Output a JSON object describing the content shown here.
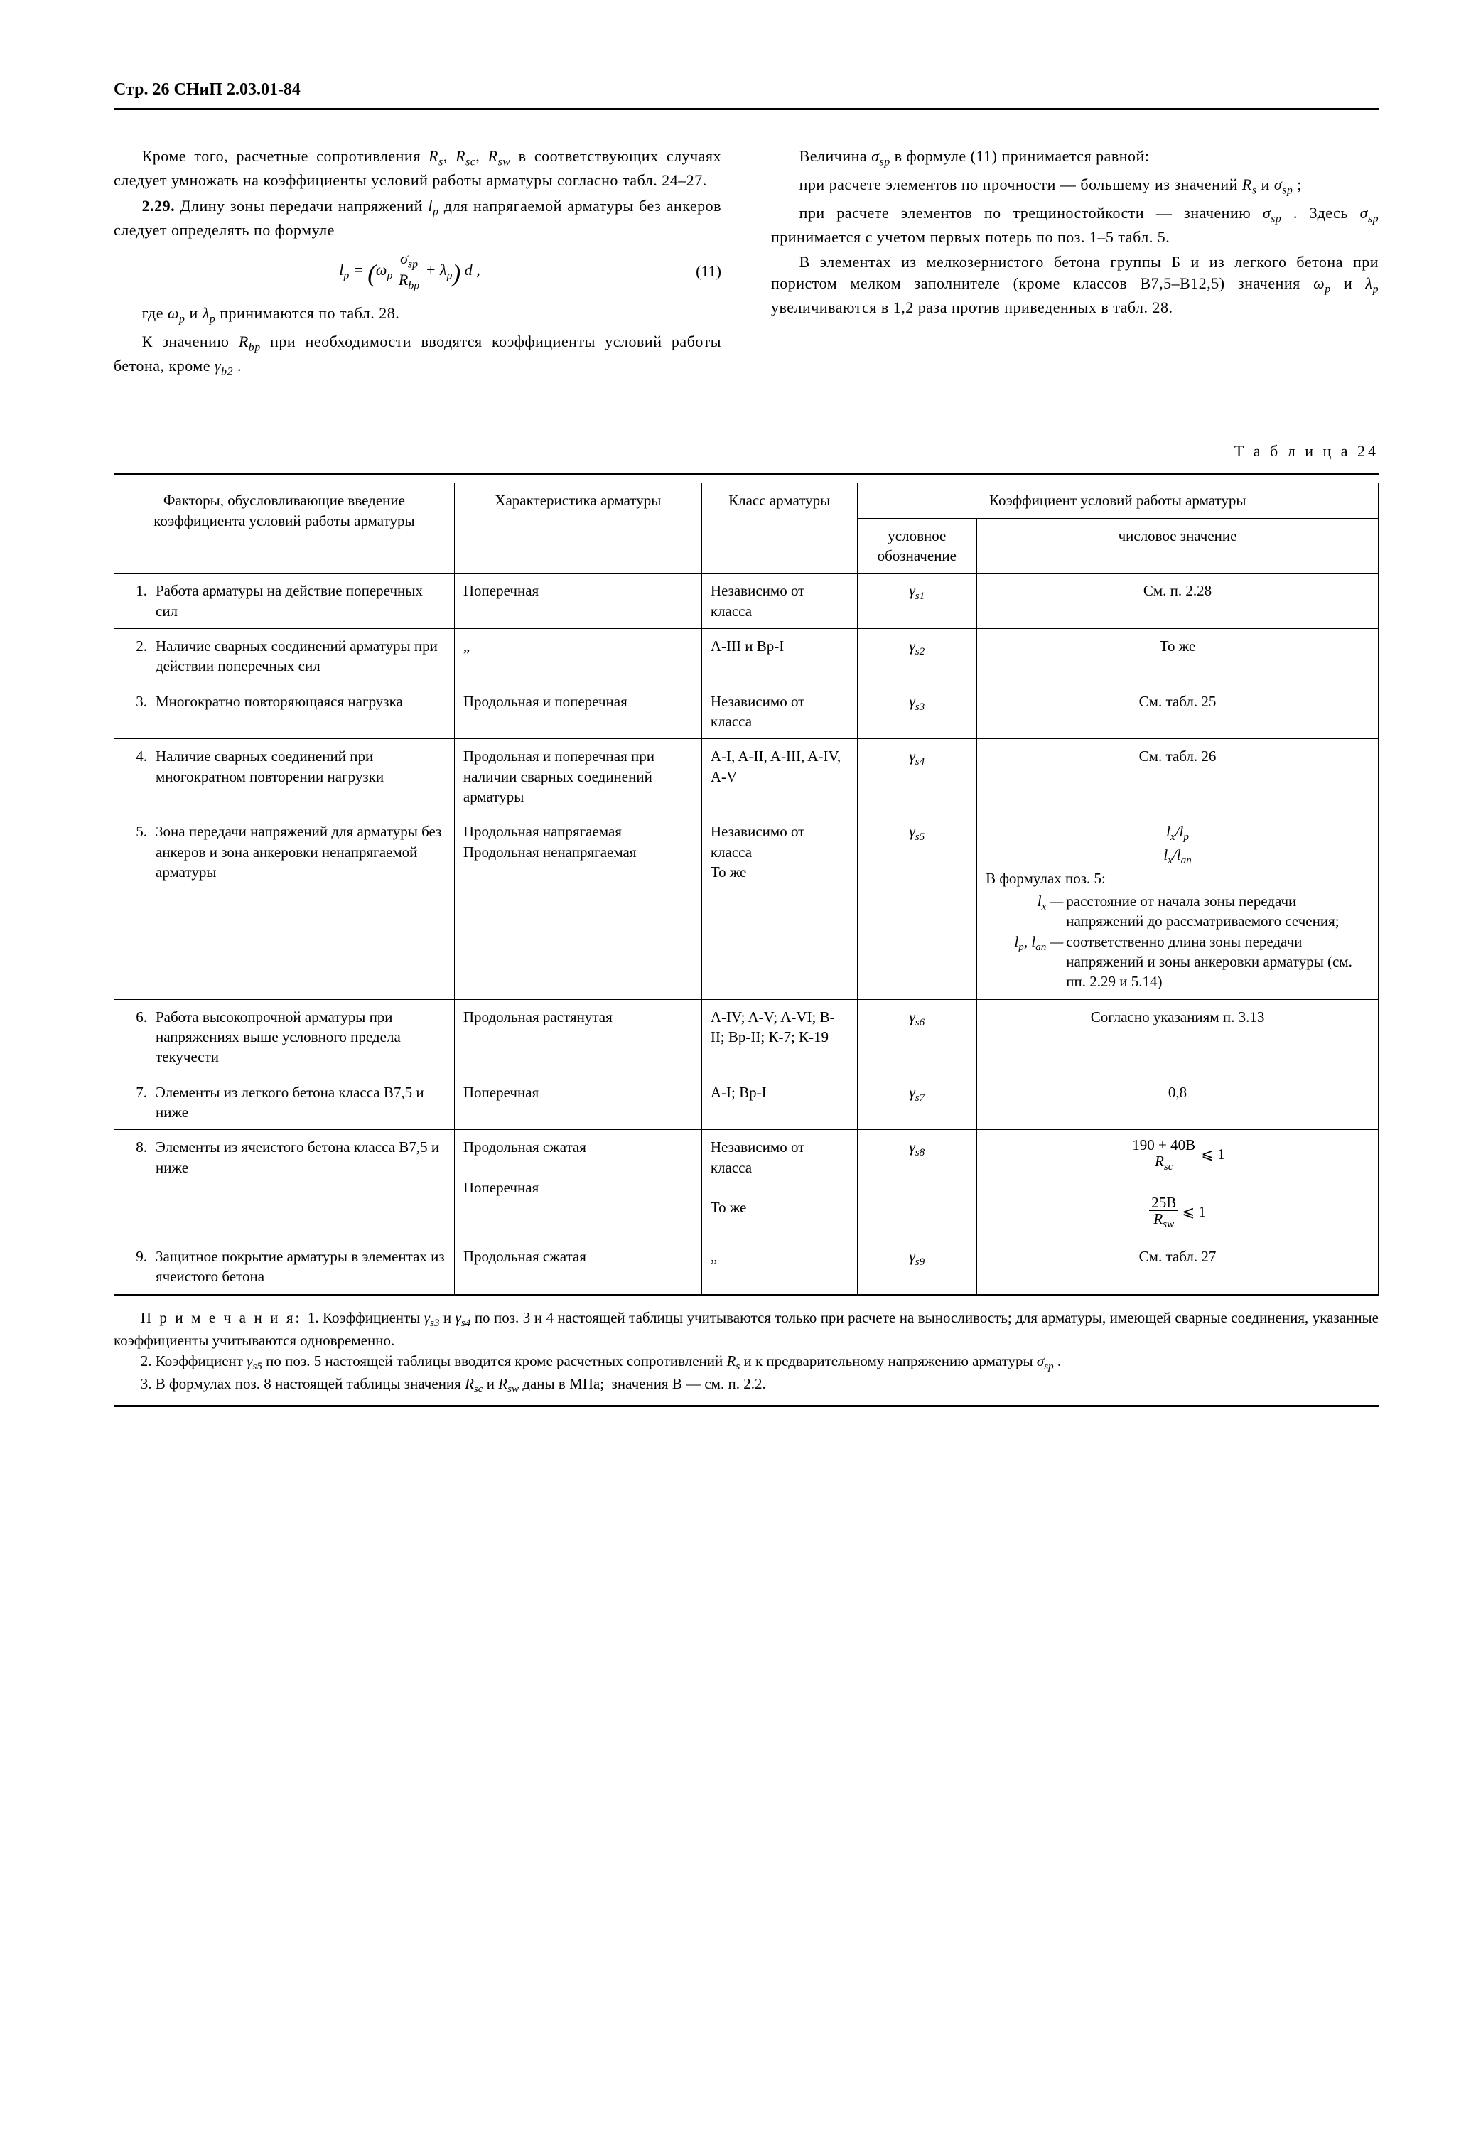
{
  "header": "Стр. 26 СНиП 2.03.01-84",
  "left": {
    "p1": "Кроме того, расчетные сопротивления Rₛ, R_sc, R_sw в соответствующих случаях следует умножать на коэффициенты условий работы арматуры согласно табл. 24–27.",
    "p2a": "2.29.",
    "p2b": " Длину зоны передачи напряжений l_p для напрягаемой арматуры без анкеров следует определять по формуле",
    "formula_num": "(11)",
    "p3": "где ω_p и λ_p принимаются по табл. 28.",
    "p4": "К значению R_bp при необходимости вводятся коэффициенты условий работы бетона, кроме γ_b2 ."
  },
  "right": {
    "p1": "Величина σ_sp в формуле (11) принимается равной:",
    "p2": "при расчете элементов по прочности — большему из значений Rₛ и σ_sp ;",
    "p3": "при расчете элементов по трещиностойкости — значению σ_sp . Здесь σ_sp принимается с учетом первых потерь по поз. 1–5 табл. 5.",
    "p4": "В элементах из мелкозернистого бетона группы Б и из легкого бетона при пористом мелком заполнителе (кроме классов В7,5–В12,5) значения ω_p и λ_p увеличиваются в 1,2 раза против приведенных в табл. 28."
  },
  "table_caption": "Т а б л и ц а  24",
  "thead": {
    "c1": "Факторы, обусловливающие введение коэффициента условий работы арматуры",
    "c2": "Характеристика арматуры",
    "c3": "Класс арматуры",
    "c4": "Коэффициент условий работы арматуры",
    "c4a": "условное обозначение",
    "c4b": "числовое значение"
  },
  "rows": [
    {
      "n": "1.",
      "factor": "Работа арматуры на действие поперечных сил",
      "char": "Поперечная",
      "class": "Независимо от класса",
      "sym": "γ_s1",
      "val": "См. п. 2.28"
    },
    {
      "n": "2.",
      "factor": "Наличие сварных соединений арматуры при действии поперечных сил",
      "char": "„",
      "class": "A-III и Вр-I",
      "sym": "γ_s2",
      "val": "То же"
    },
    {
      "n": "3.",
      "factor": "Многократно повторяющаяся нагрузка",
      "char": "Продольная и поперечная",
      "class": "Независимо от класса",
      "sym": "γ_s3",
      "val": "См. табл. 25"
    },
    {
      "n": "4.",
      "factor": "Наличие сварных соединений при многократном повторении нагрузки",
      "char": "Продольная и поперечная при наличии сварных соединений арматуры",
      "class": "A-I, A-II, A-III, A-IV, A-V",
      "sym": "γ_s4",
      "val": "См. табл. 26"
    },
    {
      "n": "5.",
      "factor": "Зона передачи напряжений для арматуры без анкеров и зона анкеровки ненапрягаемой арматуры",
      "char": "Продольная напрягаемая\nПродольная ненапрягаемая",
      "class": "Независимо от класса\nТо же",
      "sym": "γ_s5",
      "val": ""
    },
    {
      "n": "6.",
      "factor": "Работа высокопрочной арматуры при напряжениях выше условного предела текучести",
      "char": "Продольная растянутая",
      "class": "A-IV; A-V; A-VI; B-II; Вр-II; К-7; К-19",
      "sym": "γ_s6",
      "val": "Согласно указаниям п. 3.13"
    },
    {
      "n": "7.",
      "factor": "Элементы из легкого бетона класса В7,5 и ниже",
      "char": "Поперечная",
      "class": "A-I; Вр-I",
      "sym": "γ_s7",
      "val": "0,8"
    },
    {
      "n": "8.",
      "factor": "Элементы из ячеистого бетона класса В7,5 и ниже",
      "char": "Продольная сжатая\n\nПоперечная",
      "class": "Независимо от класса\n\nТо же",
      "sym": "γ_s8",
      "val": ""
    },
    {
      "n": "9.",
      "factor": "Защитное покрытие арматуры в элементах из ячеистого бетона",
      "char": "Продольная сжатая",
      "class": "„",
      "sym": "γ_s9",
      "val": "См. табл. 27"
    }
  ],
  "row5v": {
    "h1": "l_x / l_p",
    "h2": "l_x / l_an",
    "lead": "В формулах поз. 5:",
    "lx": "l_x —",
    "lx_def": "расстояние от начала зоны передачи напряжений до рассматриваемого сечения;",
    "lp": "l_p , l_an —",
    "lp_def": "соответственно длина зоны передачи напряжений и зоны анкеровки арматуры (см. пп. 2.29 и 5.14)"
  },
  "row8v": {
    "f1_num": "190 + 40В",
    "f1_den": "R_sc",
    "f2_num": "25В",
    "f2_den": "R_sw",
    "le": " ⩽ 1"
  },
  "notes": {
    "lead": "П р и м е ч а н и я: ",
    "n1": "1. Коэффициенты γ_s3 и γ_s4 по поз. 3 и 4 настоящей таблицы учитываются только при расчете на выносливость; для арматуры, имеющей сварные соединения, указанные коэффициенты учитываются одновременно.",
    "n2": "2. Коэффициент γ_s5 по поз. 5 настоящей таблицы вводится кроме расчетных сопротивлений Rₛ и к предварительному напряжению арматуры σ_sp .",
    "n3": "3. В формулах поз. 8 настоящей таблицы значения R_sc и R_sw даны в МПа;  значения В — см. п. 2.2."
  }
}
